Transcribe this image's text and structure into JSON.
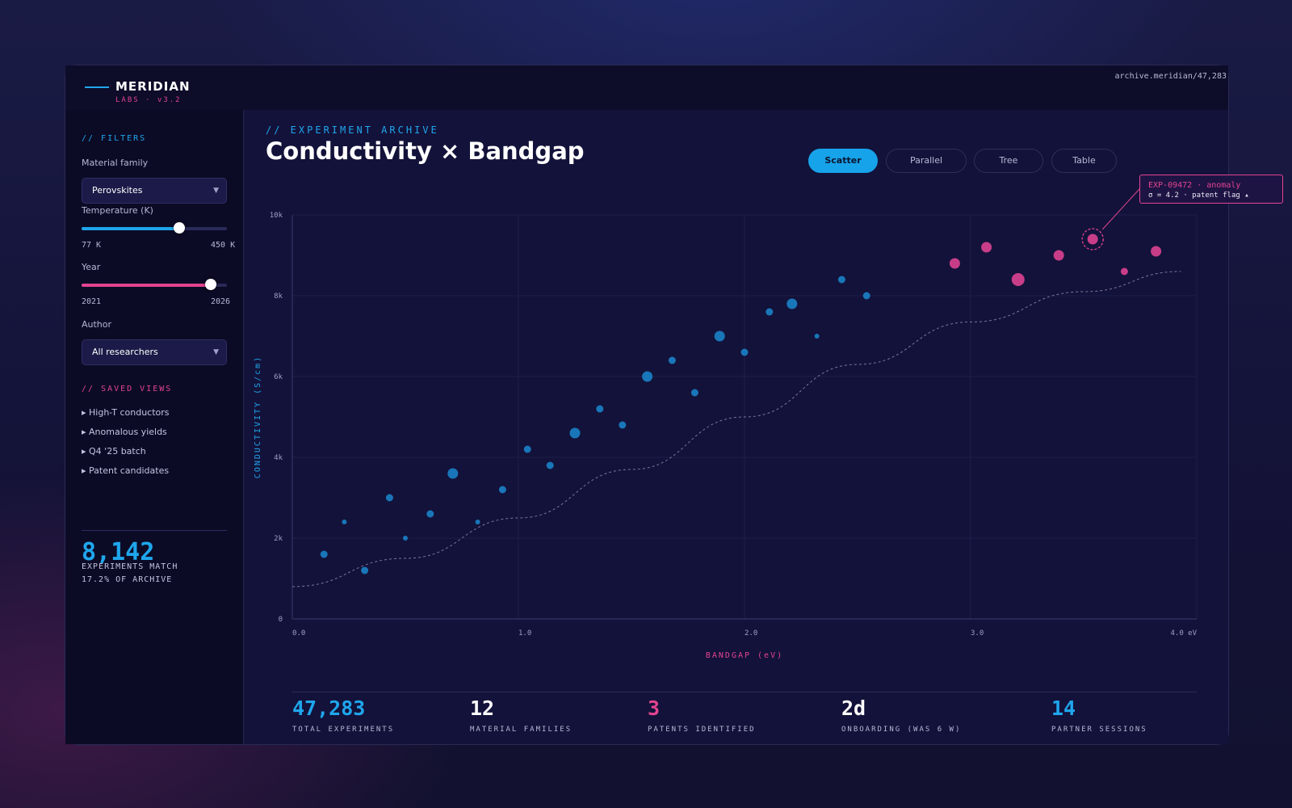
{
  "brand": {
    "name": "MERIDIAN",
    "sub": "LABS · v3.2"
  },
  "archive_url": "archive.meridian/47,283",
  "sidebar": {
    "filters_heading": "// FILTERS",
    "material_family": {
      "label": "Material family",
      "value": "Perovskites"
    },
    "temperature": {
      "label": "Temperature (K)",
      "min_label": "77 K",
      "max_label": "450 K",
      "position": 0.67
    },
    "year": {
      "label": "Year",
      "min_label": "2021",
      "max_label": "2026",
      "position": 0.89
    },
    "author": {
      "label": "Author",
      "value": "All researchers"
    },
    "saved_heading": "// SAVED VIEWS",
    "saved_views": [
      "▸ High-T conductors",
      "▸ Anomalous yields",
      "▸ Q4 '25 batch",
      "▸ Patent candidates"
    ],
    "match_count": "8,142",
    "match_line1": "EXPERIMENTS MATCH",
    "match_line2": "17.2% OF ARCHIVE"
  },
  "main": {
    "eyebrow": "// EXPERIMENT ARCHIVE",
    "title": "Conductivity × Bandgap",
    "tabs": [
      {
        "label": "Scatter",
        "active": true
      },
      {
        "label": "Parallel",
        "active": false
      },
      {
        "label": "Tree",
        "active": false
      },
      {
        "label": "Table",
        "active": false
      }
    ],
    "tooltip": {
      "line1": "EXP-09472 · anomaly",
      "line2": "σ = 4.2 · patent flag ▴"
    },
    "stats": [
      {
        "value": "47,283",
        "label": "TOTAL EXPERIMENTS",
        "color": "#1fa6ec"
      },
      {
        "value": "12",
        "label": "MATERIAL FAMILIES",
        "color": "#ffffff"
      },
      {
        "value": "3",
        "label": "PATENTS IDENTIFIED",
        "color": "#e2448f"
      },
      {
        "value": "2d",
        "label": "ONBOARDING (WAS 6 W)",
        "color": "#ffffff"
      },
      {
        "value": "14",
        "label": "PARTNER SESSIONS",
        "color": "#1fa6ec"
      }
    ]
  },
  "colors": {
    "accent_blue": "#1fa6ec",
    "accent_pink": "#e2448f"
  },
  "chart_data": {
    "type": "scatter",
    "xlabel": "BANDGAP (eV)",
    "ylabel": "CONDUCTIVITY (S/cm)",
    "xlim": [
      0,
      4
    ],
    "ylim": [
      0,
      10000
    ],
    "x_ticks": [
      {
        "v": 0,
        "label": "0.0"
      },
      {
        "v": 1,
        "label": "1.0"
      },
      {
        "v": 2,
        "label": "2.0"
      },
      {
        "v": 3,
        "label": "3.0"
      },
      {
        "v": 4,
        "label": "4.0 eV"
      }
    ],
    "y_ticks": [
      {
        "v": 0,
        "label": "0"
      },
      {
        "v": 2000,
        "label": "2k"
      },
      {
        "v": 4000,
        "label": "4k"
      },
      {
        "v": 6000,
        "label": "6k"
      },
      {
        "v": 8000,
        "label": "8k"
      },
      {
        "v": 10000,
        "label": "10k"
      }
    ],
    "grid": true,
    "series": [
      {
        "color": "#1a7fc4",
        "points": [
          {
            "x": 0.14,
            "y": 1600,
            "s": "m"
          },
          {
            "x": 0.23,
            "y": 2400,
            "s": "s"
          },
          {
            "x": 0.32,
            "y": 1200,
            "s": "m"
          },
          {
            "x": 0.43,
            "y": 3000,
            "s": "m"
          },
          {
            "x": 0.5,
            "y": 2000,
            "s": "s"
          },
          {
            "x": 0.61,
            "y": 2600,
            "s": "m"
          },
          {
            "x": 0.71,
            "y": 3600,
            "s": "l"
          },
          {
            "x": 0.82,
            "y": 2400,
            "s": "s"
          },
          {
            "x": 0.93,
            "y": 3200,
            "s": "m"
          },
          {
            "x": 1.04,
            "y": 4200,
            "s": "m"
          },
          {
            "x": 1.14,
            "y": 3800,
            "s": "m"
          },
          {
            "x": 1.25,
            "y": 4600,
            "s": "l"
          },
          {
            "x": 1.36,
            "y": 5200,
            "s": "m"
          },
          {
            "x": 1.46,
            "y": 4800,
            "s": "m"
          },
          {
            "x": 1.57,
            "y": 6000,
            "s": "l"
          },
          {
            "x": 1.68,
            "y": 6400,
            "s": "m"
          },
          {
            "x": 1.78,
            "y": 5600,
            "s": "m"
          },
          {
            "x": 1.89,
            "y": 7000,
            "s": "l"
          },
          {
            "x": 2.0,
            "y": 6600,
            "s": "m"
          },
          {
            "x": 2.11,
            "y": 7600,
            "s": "m"
          },
          {
            "x": 2.21,
            "y": 7800,
            "s": "l"
          },
          {
            "x": 2.32,
            "y": 7000,
            "s": "s"
          },
          {
            "x": 2.43,
            "y": 8400,
            "s": "m"
          },
          {
            "x": 2.54,
            "y": 8000,
            "s": "m"
          }
        ]
      },
      {
        "color": "#d8418f",
        "points": [
          {
            "x": 2.93,
            "y": 8800,
            "s": "l"
          },
          {
            "x": 3.07,
            "y": 9200,
            "s": "l"
          },
          {
            "x": 3.21,
            "y": 8400,
            "s": "xl"
          },
          {
            "x": 3.39,
            "y": 9000,
            "s": "l"
          },
          {
            "x": 3.54,
            "y": 9400,
            "s": "l",
            "highlight": true
          },
          {
            "x": 3.68,
            "y": 8600,
            "s": "m"
          },
          {
            "x": 3.82,
            "y": 9100,
            "s": "l"
          }
        ]
      }
    ],
    "trend": [
      {
        "x": 0,
        "y": 800
      },
      {
        "x": 0.5,
        "y": 1500
      },
      {
        "x": 1.0,
        "y": 2500
      },
      {
        "x": 1.5,
        "y": 3700
      },
      {
        "x": 2.0,
        "y": 5000
      },
      {
        "x": 2.5,
        "y": 6300
      },
      {
        "x": 3.0,
        "y": 7350
      },
      {
        "x": 3.5,
        "y": 8100
      },
      {
        "x": 3.93,
        "y": 8600
      }
    ]
  }
}
